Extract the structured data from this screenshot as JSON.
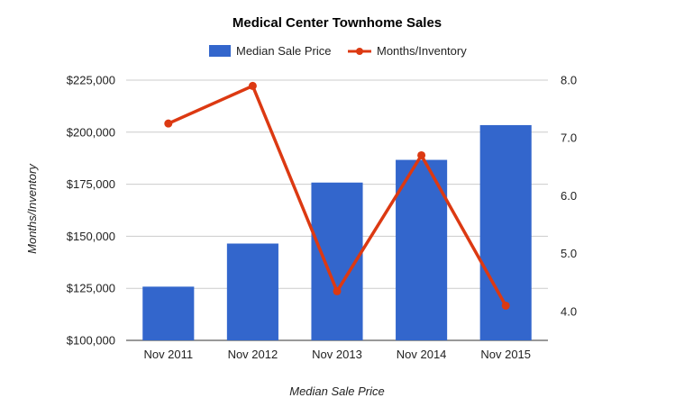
{
  "chart_data": {
    "type": "bar",
    "title": "Medical Center Townhome Sales",
    "xlabel": "Median Sale Price",
    "ylabel": "Months/Inventory",
    "categories": [
      "Nov 2011",
      "Nov 2012",
      "Nov 2013",
      "Nov 2014",
      "Nov 2015"
    ],
    "series": [
      {
        "name": "Median Sale Price",
        "kind": "bar",
        "axis": "left",
        "color": "#3366cc",
        "values": [
          125800,
          146500,
          175800,
          186700,
          203400
        ]
      },
      {
        "name": "Months/Inventory",
        "kind": "line",
        "axis": "right",
        "color": "#dc3912",
        "values": [
          7.25,
          7.9,
          4.35,
          6.7,
          4.1
        ]
      }
    ],
    "ylim_left": [
      100000,
      225000
    ],
    "ylim_right": [
      3.5,
      8.0
    ],
    "left_ticks": [
      {
        "value": 100000,
        "label": "$100,000"
      },
      {
        "value": 125000,
        "label": "$125,000"
      },
      {
        "value": 150000,
        "label": "$150,000"
      },
      {
        "value": 175000,
        "label": "$175,000"
      },
      {
        "value": 200000,
        "label": "$200,000"
      },
      {
        "value": 225000,
        "label": "$225,000"
      }
    ],
    "right_ticks": [
      {
        "value": 4.0,
        "label": "4.0"
      },
      {
        "value": 5.0,
        "label": "5.0"
      },
      {
        "value": 6.0,
        "label": "6.0"
      },
      {
        "value": 7.0,
        "label": "7.0"
      },
      {
        "value": 8.0,
        "label": "8.0"
      }
    ],
    "grid": true,
    "legend_position": "top"
  }
}
